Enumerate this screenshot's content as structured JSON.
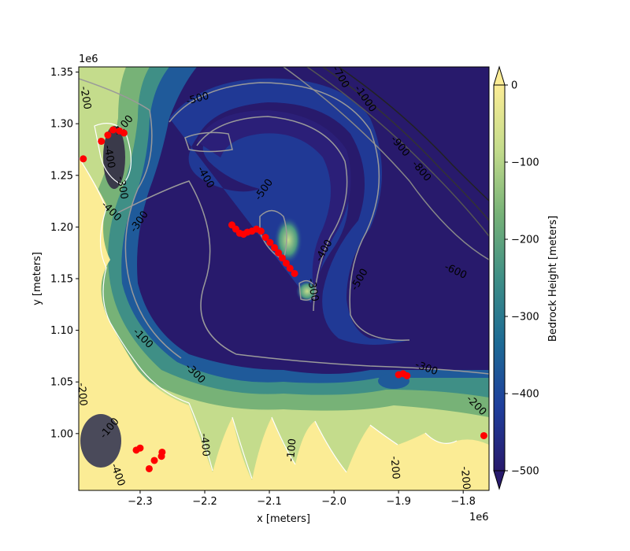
{
  "chart_data": {
    "type": "heatmap",
    "title": "",
    "xlabel": "x [meters]",
    "ylabel": "y [meters]",
    "x_offset_label": "1e6",
    "y_offset_label": "1e6",
    "xlim": [
      -2.395,
      -1.76
    ],
    "ylim": [
      0.945,
      1.355
    ],
    "x_ticks": [
      -2.3,
      -2.2,
      -2.1,
      -2.0,
      -1.9,
      -1.8
    ],
    "x_tick_labels": [
      "−2.3",
      "−2.2",
      "−2.1",
      "−2.0",
      "−1.9",
      "−1.8"
    ],
    "y_ticks": [
      1.0,
      1.05,
      1.1,
      1.15,
      1.2,
      1.25,
      1.3,
      1.35
    ],
    "y_tick_labels": [
      "1.00",
      "1.05",
      "1.10",
      "1.15",
      "1.20",
      "1.25",
      "1.30",
      "1.35"
    ],
    "colorbar": {
      "label": "Bedrock Height [meters]",
      "colormap": "haline-like (dark navy to pale yellow)",
      "vmin": -500,
      "vmax": 0,
      "ticks": [
        0,
        -100,
        -200,
        -300,
        -400,
        -500
      ],
      "tick_labels": [
        "0",
        "−100",
        "−200",
        "−300",
        "−400",
        "−500"
      ],
      "extend": "both",
      "colors": [
        "#281a6c",
        "#1f3f9c",
        "#1d6b95",
        "#3f8f86",
        "#77b277",
        "#c4dc8c",
        "#fbec95"
      ]
    },
    "contour_labels": [
      {
        "text": "-200",
        "x": -2.385,
        "y": 1.325,
        "rotation": 80
      },
      {
        "text": "-100",
        "x": -2.325,
        "y": 1.298,
        "rotation": -50
      },
      {
        "text": "-300",
        "x": -2.328,
        "y": 1.238,
        "rotation": 80
      },
      {
        "text": "-400",
        "x": -2.348,
        "y": 1.268,
        "rotation": 80
      },
      {
        "text": "-400",
        "x": -2.345,
        "y": 1.215,
        "rotation": 45
      },
      {
        "text": "-300",
        "x": -2.301,
        "y": 1.205,
        "rotation": -55
      },
      {
        "text": "-500",
        "x": -2.211,
        "y": 1.324,
        "rotation": -15
      },
      {
        "text": "-400",
        "x": -2.199,
        "y": 1.248,
        "rotation": 60
      },
      {
        "text": "-500",
        "x": -2.108,
        "y": 1.236,
        "rotation": -55
      },
      {
        "text": "-700",
        "x": -1.99,
        "y": 1.345,
        "rotation": 60
      },
      {
        "text": "-1000",
        "x": -1.952,
        "y": 1.324,
        "rotation": 55
      },
      {
        "text": "-900",
        "x": -1.898,
        "y": 1.278,
        "rotation": 50
      },
      {
        "text": "-800",
        "x": -1.865,
        "y": 1.254,
        "rotation": 50
      },
      {
        "text": "-600",
        "x": -1.812,
        "y": 1.157,
        "rotation": 25
      },
      {
        "text": "-400",
        "x": -2.015,
        "y": 1.177,
        "rotation": -60
      },
      {
        "text": "-500",
        "x": -1.96,
        "y": 1.149,
        "rotation": -60
      },
      {
        "text": "-300",
        "x": -2.033,
        "y": 1.139,
        "rotation": 80
      },
      {
        "text": "-100",
        "x": -2.296,
        "y": 1.092,
        "rotation": 45
      },
      {
        "text": "-300",
        "x": -2.215,
        "y": 1.058,
        "rotation": 45
      },
      {
        "text": "-300",
        "x": -1.857,
        "y": 1.063,
        "rotation": 20
      },
      {
        "text": "-200",
        "x": -1.78,
        "y": 1.027,
        "rotation": 45
      },
      {
        "text": "-200",
        "x": -2.39,
        "y": 1.038,
        "rotation": 85
      },
      {
        "text": "-100",
        "x": -2.347,
        "y": 1.005,
        "rotation": -50
      },
      {
        "text": "-400",
        "x": -2.2,
        "y": 0.989,
        "rotation": 85
      },
      {
        "text": "-100",
        "x": -2.065,
        "y": 0.984,
        "rotation": -85
      },
      {
        "text": "-200",
        "x": -1.906,
        "y": 0.967,
        "rotation": 85
      },
      {
        "text": "-200",
        "x": -1.797,
        "y": 0.957,
        "rotation": 85
      },
      {
        "text": "-400",
        "x": -2.335,
        "y": 0.96,
        "rotation": 70
      }
    ],
    "series": [
      {
        "type": "scatter",
        "color": "#ff0000",
        "points": [
          [
            -2.158,
            1.202
          ],
          [
            -2.152,
            1.198
          ],
          [
            -2.146,
            1.194
          ],
          [
            -2.14,
            1.193
          ],
          [
            -2.134,
            1.195
          ],
          [
            -2.127,
            1.196
          ],
          [
            -2.12,
            1.198
          ],
          [
            -2.113,
            1.196
          ],
          [
            -2.106,
            1.19
          ],
          [
            -2.099,
            1.185
          ],
          [
            -2.092,
            1.18
          ],
          [
            -2.086,
            1.175
          ],
          [
            -2.08,
            1.17
          ],
          [
            -2.074,
            1.165
          ],
          [
            -2.068,
            1.16
          ],
          [
            -2.061,
            1.155
          ],
          [
            -2.36,
            1.283
          ],
          [
            -2.35,
            1.289
          ],
          [
            -2.342,
            1.294
          ],
          [
            -2.332,
            1.293
          ],
          [
            -2.325,
            1.291
          ],
          [
            -2.388,
            1.266
          ],
          [
            -1.9,
            1.057
          ],
          [
            -1.893,
            1.058
          ],
          [
            -1.887,
            1.056
          ],
          [
            -1.768,
            0.998
          ],
          [
            -2.306,
            0.984
          ],
          [
            -2.3,
            0.986
          ],
          [
            -2.286,
            0.966
          ],
          [
            -2.278,
            0.974
          ],
          [
            -2.267,
            0.978
          ],
          [
            -2.266,
            0.982
          ]
        ]
      }
    ]
  }
}
